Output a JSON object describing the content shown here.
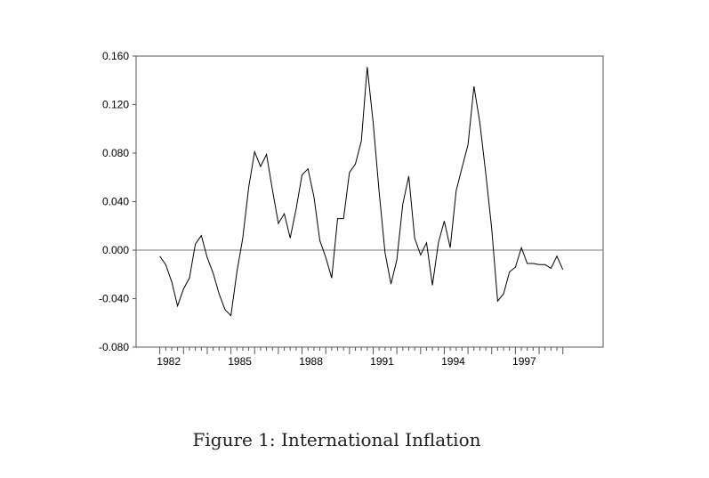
{
  "chart_data": {
    "type": "line",
    "title": "",
    "xlabel": "",
    "ylabel": "",
    "caption": "Figure 1: International Inflation",
    "ylim": [
      -0.08,
      0.16
    ],
    "xlim": [
      1981,
      2000.7
    ],
    "grid": false,
    "zero_line": true,
    "y_ticks": [
      -0.08,
      -0.04,
      0.0,
      0.04,
      0.08,
      0.12,
      0.16
    ],
    "y_tick_labels": [
      "-0.080",
      "-0.040",
      "0.000",
      "0.040",
      "0.080",
      "0.120",
      "0.160"
    ],
    "x_ticks": [
      1982,
      1985,
      1988,
      1991,
      1994,
      1997
    ],
    "x_tick_labels": [
      "1982",
      "1985",
      "1988",
      "1991",
      "1994",
      "1997"
    ],
    "series": [
      {
        "name": "International Inflation",
        "x": [
          1982.0,
          1982.25,
          1982.5,
          1982.75,
          1983.0,
          1983.25,
          1983.5,
          1983.75,
          1984.0,
          1984.25,
          1984.5,
          1984.75,
          1985.0,
          1985.25,
          1985.5,
          1985.75,
          1986.0,
          1986.25,
          1986.5,
          1986.75,
          1987.0,
          1987.25,
          1987.5,
          1987.75,
          1988.0,
          1988.25,
          1988.5,
          1988.75,
          1989.0,
          1989.25,
          1989.5,
          1989.75,
          1990.0,
          1990.25,
          1990.5,
          1990.75,
          1991.0,
          1991.25,
          1991.5,
          1991.75,
          1992.0,
          1992.25,
          1992.5,
          1992.75,
          1993.0,
          1993.25,
          1993.5,
          1993.75,
          1994.0,
          1994.25,
          1994.5,
          1994.75,
          1995.0,
          1995.25,
          1995.5,
          1995.75,
          1996.0,
          1996.25,
          1996.5,
          1996.75,
          1997.0,
          1997.25,
          1997.5,
          1997.75,
          1998.0,
          1998.25,
          1998.5,
          1998.75,
          1999.0
        ],
        "values": [
          -0.005,
          -0.012,
          -0.026,
          -0.046,
          -0.032,
          -0.023,
          0.005,
          0.012,
          -0.006,
          -0.019,
          -0.036,
          -0.049,
          -0.054,
          -0.018,
          0.01,
          0.052,
          0.081,
          0.069,
          0.079,
          0.05,
          0.022,
          0.03,
          0.01,
          0.034,
          0.062,
          0.067,
          0.044,
          0.008,
          -0.006,
          -0.023,
          0.026,
          0.026,
          0.064,
          0.071,
          0.09,
          0.151,
          0.105,
          0.048,
          -0.002,
          -0.028,
          -0.008,
          0.038,
          0.061,
          0.01,
          -0.004,
          0.006,
          -0.029,
          0.006,
          0.024,
          0.002,
          0.049,
          0.068,
          0.087,
          0.135,
          0.105,
          0.063,
          0.018,
          -0.042,
          -0.036,
          -0.018,
          -0.014,
          0.002,
          -0.011,
          -0.011,
          -0.012,
          -0.012,
          -0.015,
          -0.005,
          -0.016
        ]
      }
    ]
  }
}
